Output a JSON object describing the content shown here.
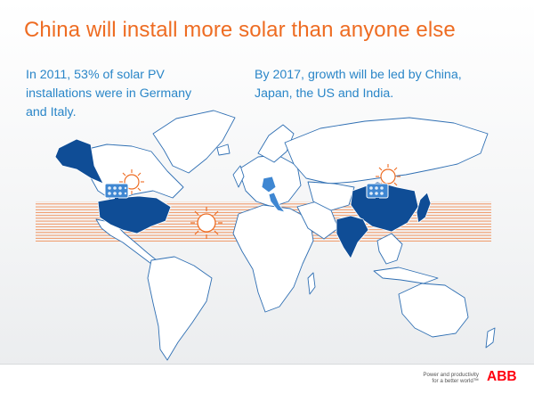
{
  "slide": {
    "title": "China will install more solar than anyone else",
    "left_text": "In 2011, 53% of solar PV\ninstallations were in Germany\nand Italy.",
    "right_text": "By 2017, growth will be led by China,\nJapan, the US and India."
  },
  "footer": {
    "tagline_line1": "Power and productivity",
    "tagline_line2": "for a better world™",
    "logo_text": "ABB"
  },
  "colors": {
    "title": "#ee6c22",
    "body_text": "#2a86c8",
    "highlight_country": "#0f4d96",
    "highlight_light": "#3f87d2",
    "land": "#ffffff",
    "border": "#2f6fb3",
    "sun": "#ee6c22",
    "logo_red": "#ff000f"
  },
  "icons": [
    "sun-icon",
    "solar-panel-icon",
    "abb-logo"
  ]
}
